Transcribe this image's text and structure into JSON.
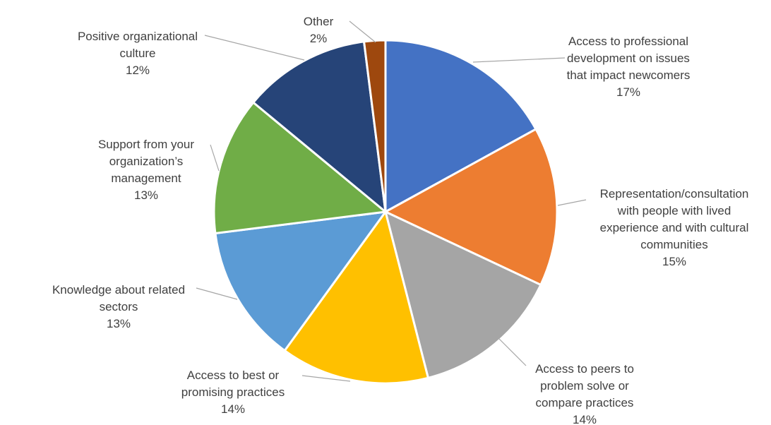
{
  "chart_data": {
    "type": "pie",
    "slices": [
      {
        "lines": [
          "Access to professional",
          "development on issues",
          "that impact newcomers"
        ],
        "percent_label": "17%",
        "value": 17,
        "color": "#4472C4"
      },
      {
        "lines": [
          "Representation/consultation",
          "with people with lived",
          "experience and with cultural",
          "communities"
        ],
        "percent_label": "15%",
        "value": 15,
        "color": "#ED7D31"
      },
      {
        "lines": [
          "Access to peers to",
          "problem solve or",
          "compare practices"
        ],
        "percent_label": "14%",
        "value": 14,
        "color": "#A5A5A5"
      },
      {
        "lines": [
          "Access to best or",
          "promising practices"
        ],
        "percent_label": "14%",
        "value": 14,
        "color": "#FFC000"
      },
      {
        "lines": [
          "Knowledge about related",
          "sectors"
        ],
        "percent_label": "13%",
        "value": 13,
        "color": "#5B9BD5"
      },
      {
        "lines": [
          "Support from your",
          "organization’s",
          "management"
        ],
        "percent_label": "13%",
        "value": 13,
        "color": "#70AD47"
      },
      {
        "lines": [
          "Positive organizational",
          "culture"
        ],
        "percent_label": "12%",
        "value": 12,
        "color": "#264478"
      },
      {
        "lines": [
          "Other"
        ],
        "percent_label": "2%",
        "value": 2,
        "color": "#9E480E"
      }
    ],
    "start_angle_deg": 0,
    "direction": "clockwise",
    "legend": "none"
  }
}
